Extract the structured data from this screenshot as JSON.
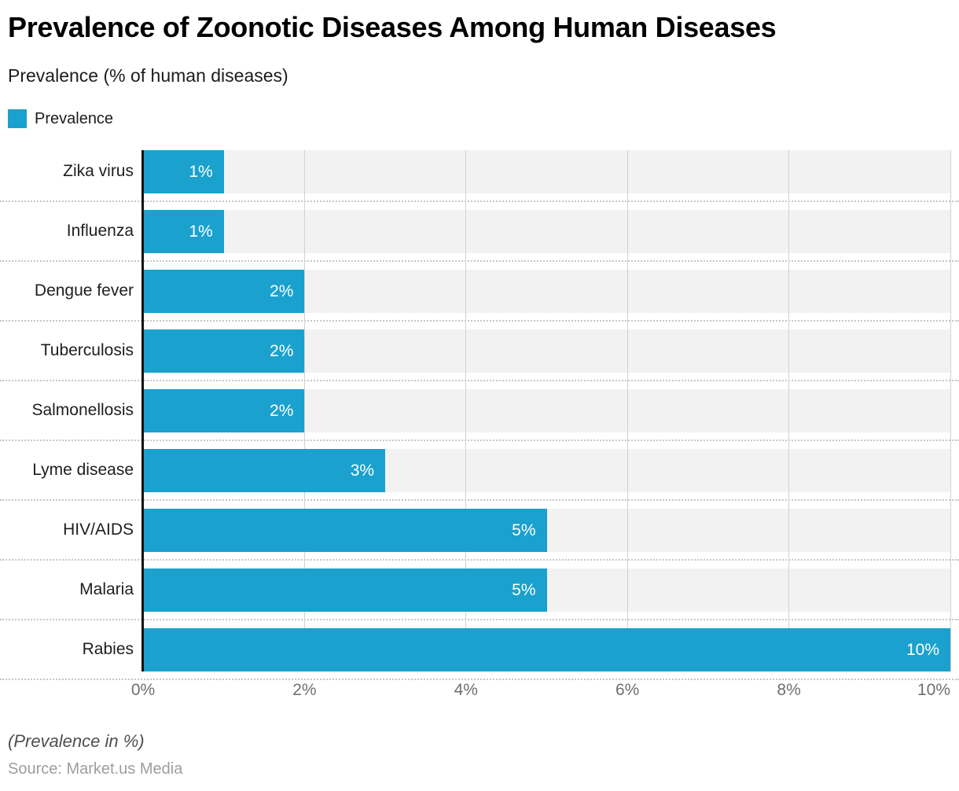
{
  "header": {
    "title": "Prevalence of Zoonotic Diseases Among Human Diseases",
    "subtitle": "Prevalence (% of human diseases)"
  },
  "legend": {
    "label": "Prevalence"
  },
  "footer": {
    "note": "(Prevalence in %)",
    "source": "Source: Market.us Media"
  },
  "chart_data": {
    "type": "bar",
    "orientation": "horizontal",
    "title": "Prevalence of Zoonotic Diseases Among Human Diseases",
    "subtitle": "Prevalence (% of human diseases)",
    "series_name": "Prevalence",
    "categories": [
      "Zika virus",
      "Influenza",
      "Dengue fever",
      "Tuberculosis",
      "Salmonellosis",
      "Lyme disease",
      "HIV/AIDS",
      "Malaria",
      "Rabies"
    ],
    "values": [
      1,
      1,
      2,
      2,
      2,
      3,
      5,
      5,
      10
    ],
    "value_labels": [
      "1%",
      "1%",
      "2%",
      "2%",
      "2%",
      "3%",
      "5%",
      "5%",
      "10%"
    ],
    "xlim": [
      0,
      10
    ],
    "x_ticks": [
      0,
      2,
      4,
      6,
      8,
      10
    ],
    "x_tick_labels": [
      "0%",
      "2%",
      "4%",
      "6%",
      "8%",
      "10%"
    ],
    "grid": "vertical-on",
    "legend_position": "top-left",
    "note": "(Prevalence in %)",
    "source": "Source: Market.us Media",
    "colors": {
      "bar": "#1aa1ce",
      "track": "#f2f2f2",
      "gridline": "#d2d2d2",
      "axis": "#141414",
      "row_separator": "#c6c6c6",
      "value_label": "#ffffff",
      "tick_label": "#6f6f6f"
    }
  }
}
